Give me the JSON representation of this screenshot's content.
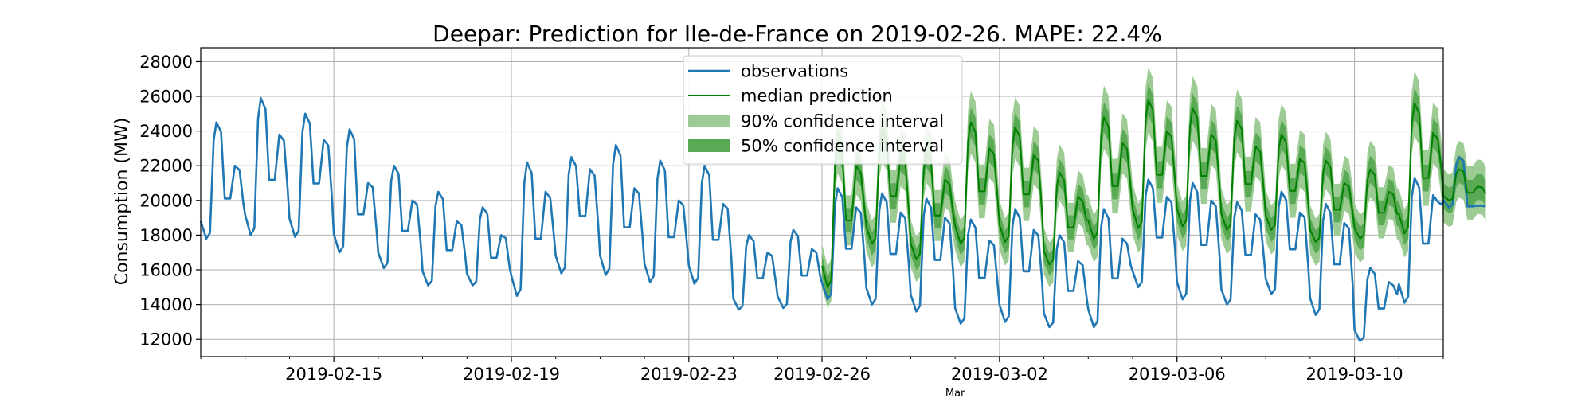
{
  "chart_data": {
    "type": "line",
    "title": "Deepar: Prediction for Ile-de-France on 2019-02-26. MAPE: 22.4%",
    "xlabel": "",
    "ylabel": "Consumption (MW)",
    "ylim": [
      11000,
      28800
    ],
    "xlim": [
      "2019-02-12",
      "2019-03-12"
    ],
    "grid": true,
    "legend_position": "top-center",
    "x_ticks": [
      "2019-02-15",
      "2019-02-19",
      "2019-02-23",
      "2019-02-26",
      "2019-03-02",
      "2019-03-06",
      "2019-03-10"
    ],
    "x_minor_label": "Mar",
    "y_ticks": [
      12000,
      14000,
      16000,
      18000,
      20000,
      22000,
      24000,
      26000,
      28000
    ],
    "colors": {
      "observations": "#1f77b4",
      "median": "#008000",
      "ci90": "#9ccc94",
      "ci50": "#5aa955"
    },
    "legend": [
      {
        "label": "observations",
        "kind": "line-blue"
      },
      {
        "label": "median prediction",
        "kind": "line-green"
      },
      {
        "label": "90% confidence interval",
        "kind": "band-light"
      },
      {
        "label": "50% confidence interval",
        "kind": "band-dark"
      }
    ],
    "series": [
      {
        "name": "observations",
        "daily": [
          {
            "date": "2019-02-12",
            "night": 17800,
            "peak": 24500,
            "eve": 22000
          },
          {
            "date": "2019-02-13",
            "night": 18000,
            "peak": 25900,
            "eve": 23800
          },
          {
            "date": "2019-02-14",
            "night": 17900,
            "peak": 25000,
            "eve": 23500
          },
          {
            "date": "2019-02-15",
            "night": 17000,
            "peak": 24100,
            "eve": 21000
          },
          {
            "date": "2019-02-16",
            "night": 16100,
            "peak": 22000,
            "eve": 20000
          },
          {
            "date": "2019-02-17",
            "night": 15100,
            "peak": 20500,
            "eve": 18800
          },
          {
            "date": "2019-02-18",
            "night": 15100,
            "peak": 19600,
            "eve": 18000
          },
          {
            "date": "2019-02-19",
            "night": 14500,
            "peak": 22200,
            "eve": 20500
          },
          {
            "date": "2019-02-20",
            "night": 15800,
            "peak": 22500,
            "eve": 21800
          },
          {
            "date": "2019-02-21",
            "night": 15700,
            "peak": 23200,
            "eve": 20700
          },
          {
            "date": "2019-02-22",
            "night": 15300,
            "peak": 22300,
            "eve": 20000
          },
          {
            "date": "2019-02-23",
            "night": 15200,
            "peak": 22000,
            "eve": 19800
          },
          {
            "date": "2019-02-24",
            "night": 13700,
            "peak": 18000,
            "eve": 17000
          },
          {
            "date": "2019-02-25",
            "night": 13800,
            "peak": 18300,
            "eve": 17200
          },
          {
            "date": "2019-02-26",
            "night": 14300,
            "peak": 20700,
            "eve": 19600
          },
          {
            "date": "2019-02-27",
            "night": 14000,
            "peak": 20400,
            "eve": 19300
          },
          {
            "date": "2019-02-28",
            "night": 13600,
            "peak": 20100,
            "eve": 19000
          },
          {
            "date": "2019-03-01",
            "night": 12900,
            "peak": 18900,
            "eve": 17700
          },
          {
            "date": "2019-03-02",
            "night": 13000,
            "peak": 19500,
            "eve": 18300
          },
          {
            "date": "2019-03-03",
            "night": 12700,
            "peak": 18000,
            "eve": 16500
          },
          {
            "date": "2019-03-04",
            "night": 12700,
            "peak": 19500,
            "eve": 17800
          },
          {
            "date": "2019-03-05",
            "night": 15000,
            "peak": 21200,
            "eve": 20200
          },
          {
            "date": "2019-03-06",
            "night": 14300,
            "peak": 21000,
            "eve": 20000
          },
          {
            "date": "2019-03-07",
            "night": 14000,
            "peak": 19900,
            "eve": 19200
          },
          {
            "date": "2019-03-08",
            "night": 14600,
            "peak": 20500,
            "eve": 19300
          },
          {
            "date": "2019-03-09",
            "night": 13400,
            "peak": 19800,
            "eve": 18700
          },
          {
            "date": "2019-03-10",
            "night": 11900,
            "peak": 16100,
            "eve": 15300
          },
          {
            "date": "2019-03-11",
            "night": 14100,
            "peak": 21300,
            "eve": 20300
          },
          {
            "date": "2019-03-12",
            "night": 19600,
            "peak": 22500,
            "eve": 19700
          }
        ]
      },
      {
        "name": "median prediction",
        "daily": [
          {
            "date": "2019-02-26",
            "night": 15000,
            "peak": 23300,
            "eve": 22000
          },
          {
            "date": "2019-02-27",
            "night": 17500,
            "peak": 24000,
            "eve": 22500
          },
          {
            "date": "2019-02-28",
            "night": 16600,
            "peak": 22700,
            "eve": 21200
          },
          {
            "date": "2019-03-01",
            "night": 17500,
            "peak": 24500,
            "eve": 23000
          },
          {
            "date": "2019-03-02",
            "night": 17600,
            "peak": 24200,
            "eve": 22600
          },
          {
            "date": "2019-03-03",
            "night": 16300,
            "peak": 21600,
            "eve": 20200
          },
          {
            "date": "2019-03-04",
            "night": 17800,
            "peak": 24800,
            "eve": 23300
          },
          {
            "date": "2019-03-05",
            "night": 18400,
            "peak": 25800,
            "eve": 24000
          },
          {
            "date": "2019-03-06",
            "night": 18500,
            "peak": 25300,
            "eve": 23800
          },
          {
            "date": "2019-03-07",
            "night": 18300,
            "peak": 24600,
            "eve": 23100
          },
          {
            "date": "2019-03-08",
            "night": 18300,
            "peak": 23800,
            "eve": 22400
          },
          {
            "date": "2019-03-09",
            "night": 17600,
            "peak": 22300,
            "eve": 21000
          },
          {
            "date": "2019-03-10",
            "night": 17800,
            "peak": 21800,
            "eve": 20500
          },
          {
            "date": "2019-03-11",
            "night": 18100,
            "peak": 25600,
            "eve": 23900
          },
          {
            "date": "2019-03-12",
            "night": 20000,
            "peak": 21800,
            "eve": 20800
          }
        ],
        "ci50_halfwidth": [
          600,
          900
        ],
        "ci90_halfwidth": [
          1200,
          1900
        ]
      }
    ]
  }
}
